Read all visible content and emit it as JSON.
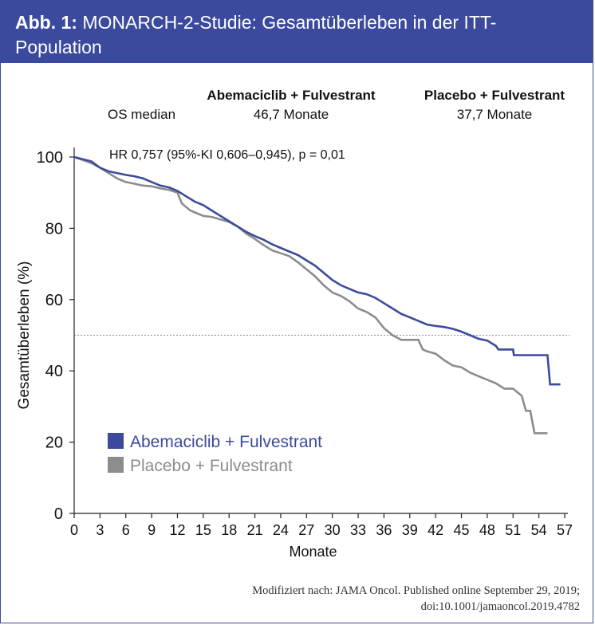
{
  "header": {
    "label": "Abb. 1:",
    "title": "MONARCH-2-Studie: Gesamtüberleben in der ITT-Population"
  },
  "median_table": {
    "row_label": "OS median",
    "col1_header": "Abemaciclib + Fulvestrant",
    "col1_value": "46,7 Monate",
    "col2_header": "Placebo + Fulvestrant",
    "col2_value": "37,7 Monate"
  },
  "colors": {
    "header_bg": "#3b4a9c",
    "abemaciclib": "#3b4a9c",
    "placebo": "#8c8c8c"
  },
  "chart_data": {
    "type": "line",
    "title": "",
    "xlabel": "Monate",
    "ylabel": "Gesamtüberleben (%)",
    "xlim": [
      0,
      57
    ],
    "ylim": [
      0,
      100
    ],
    "xticks": [
      0,
      3,
      6,
      9,
      12,
      15,
      18,
      21,
      24,
      27,
      30,
      33,
      36,
      39,
      42,
      45,
      48,
      51,
      54,
      57
    ],
    "yticks": [
      0,
      20,
      40,
      60,
      80,
      100
    ],
    "reference_line_y": 50,
    "annotation": "HR 0,757 (95%-KI 0,606–0,945), p = 0,01",
    "legend_position": "lower-left",
    "series": [
      {
        "name": "Abemaciclib + Fulvestrant",
        "color": "#3b4a9c",
        "points": [
          [
            0,
            100
          ],
          [
            2,
            98.8
          ],
          [
            3,
            97
          ],
          [
            4,
            96
          ],
          [
            5,
            95.5
          ],
          [
            6,
            95
          ],
          [
            7,
            94.6
          ],
          [
            8,
            94
          ],
          [
            9,
            93
          ],
          [
            10,
            92
          ],
          [
            11,
            91.5
          ],
          [
            12,
            90.5
          ],
          [
            13,
            89
          ],
          [
            14,
            87.5
          ],
          [
            15,
            86.5
          ],
          [
            16,
            85
          ],
          [
            17,
            83.5
          ],
          [
            18,
            82
          ],
          [
            19,
            80.5
          ],
          [
            20,
            79
          ],
          [
            21,
            77.8
          ],
          [
            22,
            76.8
          ],
          [
            23,
            75.5
          ],
          [
            24,
            74.5
          ],
          [
            25,
            73.5
          ],
          [
            26,
            72.5
          ],
          [
            27,
            71
          ],
          [
            28,
            69.5
          ],
          [
            29,
            67.5
          ],
          [
            30,
            65.5
          ],
          [
            31,
            64
          ],
          [
            32,
            63
          ],
          [
            33,
            62
          ],
          [
            34,
            61.5
          ],
          [
            35,
            60.5
          ],
          [
            36,
            59
          ],
          [
            37,
            57.5
          ],
          [
            38,
            56
          ],
          [
            39,
            55
          ],
          [
            40,
            54
          ],
          [
            41,
            53
          ],
          [
            42,
            52.6
          ],
          [
            43,
            52.3
          ],
          [
            44,
            51.8
          ],
          [
            45,
            51
          ],
          [
            46,
            50
          ],
          [
            47,
            49
          ],
          [
            48,
            48.5
          ],
          [
            49,
            47
          ],
          [
            49.3,
            46
          ],
          [
            50,
            46
          ],
          [
            51,
            46
          ],
          [
            51.1,
            44.4
          ],
          [
            52,
            44.4
          ],
          [
            53,
            44.4
          ],
          [
            54,
            44.4
          ],
          [
            55,
            44.4
          ],
          [
            55.3,
            36.2
          ],
          [
            56.5,
            36.2
          ]
        ]
      },
      {
        "name": "Placebo + Fulvestrant",
        "color": "#8c8c8c",
        "points": [
          [
            0,
            100
          ],
          [
            1,
            99.2
          ],
          [
            2,
            98.3
          ],
          [
            3,
            97
          ],
          [
            4,
            95.5
          ],
          [
            5,
            94
          ],
          [
            6,
            93
          ],
          [
            7,
            92.5
          ],
          [
            8,
            92
          ],
          [
            9,
            91.8
          ],
          [
            10,
            91.2
          ],
          [
            11,
            90.8
          ],
          [
            12,
            90
          ],
          [
            12.5,
            87
          ],
          [
            13.5,
            85
          ],
          [
            15,
            83.5
          ],
          [
            16,
            83.2
          ],
          [
            17,
            82.5
          ],
          [
            18,
            81.8
          ],
          [
            19,
            80.5
          ],
          [
            20,
            78.5
          ],
          [
            21,
            77
          ],
          [
            22,
            75.3
          ],
          [
            23,
            73.8
          ],
          [
            24,
            73
          ],
          [
            25,
            72.2
          ],
          [
            26,
            70.5
          ],
          [
            27,
            68.5
          ],
          [
            28,
            66.5
          ],
          [
            29,
            64
          ],
          [
            30,
            62
          ],
          [
            31,
            61
          ],
          [
            32,
            59.5
          ],
          [
            33,
            57.5
          ],
          [
            34,
            56.5
          ],
          [
            35,
            55
          ],
          [
            36,
            52
          ],
          [
            37,
            50
          ],
          [
            38,
            48.7
          ],
          [
            39,
            48.7
          ],
          [
            40,
            48.7
          ],
          [
            40.5,
            46
          ],
          [
            41,
            45.5
          ],
          [
            42,
            44.8
          ],
          [
            43,
            43
          ],
          [
            44,
            41.5
          ],
          [
            45,
            41
          ],
          [
            46,
            39.5
          ],
          [
            47,
            38.5
          ],
          [
            48,
            37.5
          ],
          [
            49,
            36.5
          ],
          [
            50,
            35
          ],
          [
            51,
            35
          ],
          [
            52,
            33
          ],
          [
            52.5,
            28.8
          ],
          [
            53,
            28.8
          ],
          [
            53.5,
            22.5
          ],
          [
            54,
            22.5
          ],
          [
            55,
            22.5
          ]
        ]
      }
    ]
  },
  "source": {
    "line1": "Modifiziert nach: JAMA Oncol. Published online September 29, 2019;",
    "line2": "doi:10.1001/jamaoncol.2019.4782"
  }
}
